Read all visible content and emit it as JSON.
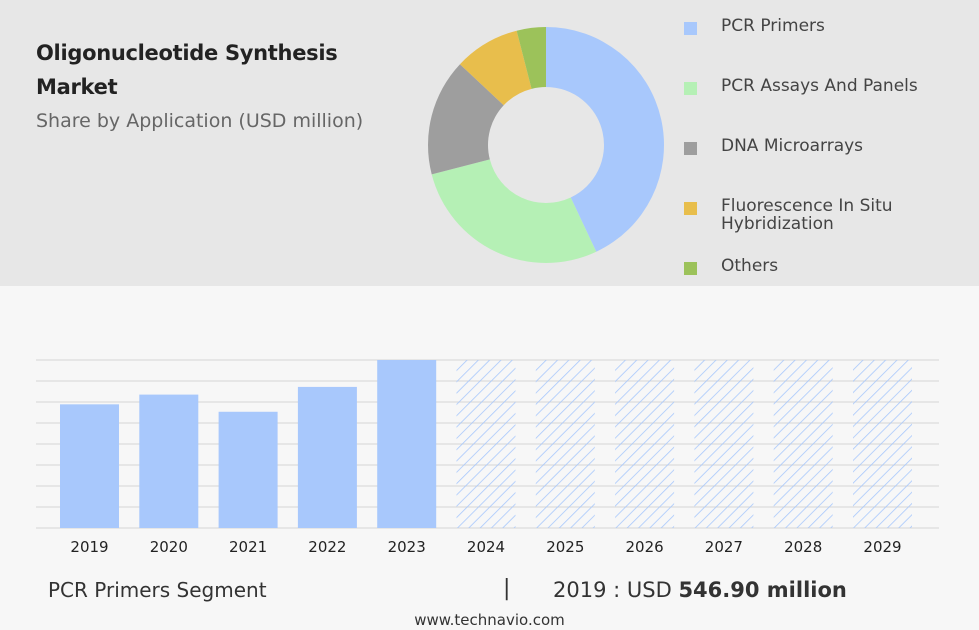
{
  "header": {
    "title": "Oligonucleotide Synthesis Market",
    "subtitle": "Share by Application (USD million)"
  },
  "colors": {
    "pcr_primers": "#a8c8fc",
    "pcr_assays": "#b5f0b5",
    "dna_microarrays": "#9e9e9e",
    "fish": "#e8be4c",
    "others": "#9cc25a",
    "bar": "#a8c8fc",
    "forecast_hatch": "#a8c8fc",
    "top_bg": "#e7e7e7"
  },
  "legend": [
    {
      "label": "PCR Primers",
      "color": "#a8c8fc"
    },
    {
      "label": "PCR Assays And Panels",
      "color": "#b5f0b5"
    },
    {
      "label": "DNA Microarrays",
      "color": "#9e9e9e"
    },
    {
      "label": "Fluorescence In Situ Hybridization",
      "color": "#e8be4c"
    },
    {
      "label": "Others",
      "color": "#9cc25a"
    }
  ],
  "chart_data": [
    {
      "type": "pie",
      "donut": true,
      "categories": [
        "PCR Primers",
        "PCR Assays And Panels",
        "DNA Microarrays",
        "Fluorescence In Situ Hybridization",
        "Others"
      ],
      "values": [
        43,
        28,
        16,
        9,
        4
      ],
      "colors": [
        "#a8c8fc",
        "#b5f0b5",
        "#9e9e9e",
        "#e8be4c",
        "#9cc25a"
      ],
      "legend_position": "right"
    },
    {
      "type": "bar",
      "title": "",
      "categories": [
        "2019",
        "2020",
        "2021",
        "2022",
        "2023",
        "2024",
        "2025",
        "2026",
        "2027",
        "2028",
        "2029"
      ],
      "values": [
        546.9,
        590,
        514,
        624,
        743,
        null,
        null,
        null,
        null,
        null,
        null
      ],
      "forecast_categories": [
        "2024",
        "2025",
        "2026",
        "2027",
        "2028",
        "2029"
      ],
      "forecast_style": "hatched, full height",
      "ylim": [
        0,
        743
      ],
      "grid": true,
      "xlabel": "",
      "ylabel": ""
    }
  ],
  "footer": {
    "segment_label": "PCR Primers Segment",
    "separator": "|",
    "year_text": "2019 : USD",
    "value_text": "546.90 million",
    "website": "www.technavio.com"
  }
}
